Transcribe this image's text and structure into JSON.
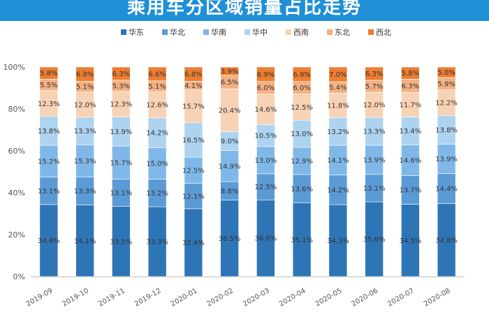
{
  "title": "乘用车分区域销量占比走势",
  "chart_data": {
    "type": "bar",
    "stacked": true,
    "title": "乘用车分区域销量占比走势",
    "xlabel": "",
    "ylabel": "",
    "ylim": [
      0,
      100
    ],
    "y_ticks": [
      "0%",
      "20%",
      "40%",
      "60%",
      "80%",
      "100%"
    ],
    "grid": false,
    "legend_position": "top",
    "categories": [
      "2019-09",
      "2019-10",
      "2019-11",
      "2019-12",
      "2020-01",
      "2020-02",
      "2020-03",
      "2020-04",
      "2020-05",
      "2020-06",
      "2020-07",
      "2020-08"
    ],
    "series": [
      {
        "name": "华东",
        "color": "#2e75b6",
        "values": [
          34.4,
          34.1,
          33.5,
          33.3,
          32.4,
          36.5,
          36.6,
          35.1,
          34.3,
          35.6,
          34.5,
          34.8
        ],
        "labels": [
          "34.4%",
          "34.1%",
          "33.5%",
          "33.3%",
          "32.4%",
          "36.5%",
          "36.6%",
          "35.1%",
          "34.3%",
          "35.6%",
          "34.5%",
          "34.8%"
        ]
      },
      {
        "name": "华北",
        "color": "#5b9bd5",
        "values": [
          13.1,
          13.3,
          13.1,
          13.2,
          12.1,
          8.8,
          12.5,
          13.6,
          14.2,
          13.1,
          13.7,
          14.4
        ],
        "labels": [
          "13.1%",
          "13.3%",
          "13.1%",
          "13.2%",
          "12.1%",
          "8.8%",
          "12.5%",
          "13.6%",
          "14.2%",
          "13.1%",
          "13.7%",
          "14.4%"
        ]
      },
      {
        "name": "华南",
        "color": "#7fb8e8",
        "values": [
          15.2,
          15.3,
          15.7,
          15.0,
          12.5,
          14.9,
          13.0,
          12.9,
          14.1,
          13.9,
          14.6,
          13.9
        ],
        "labels": [
          "15.2%",
          "15.3%",
          "15.7%",
          "15.0%",
          "12.5%",
          "14.9%",
          "13.0%",
          "12.9%",
          "14.1%",
          "13.9%",
          "14.6%",
          "13.9%"
        ]
      },
      {
        "name": "华中",
        "color": "#add3f1",
        "values": [
          13.8,
          13.3,
          13.9,
          14.2,
          16.5,
          9.0,
          10.5,
          13.0,
          13.2,
          13.3,
          13.4,
          13.8
        ],
        "labels": [
          "13.8%",
          "13.3%",
          "13.9%",
          "14.2%",
          "16.5%",
          "9.0%",
          "10.5%",
          "13.0%",
          "13.2%",
          "13.3%",
          "13.4%",
          "13.8%"
        ]
      },
      {
        "name": "西南",
        "color": "#f8d2b4",
        "values": [
          12.3,
          12.0,
          12.3,
          12.6,
          15.7,
          20.4,
          14.6,
          12.5,
          11.8,
          12.0,
          11.7,
          12.2
        ],
        "labels": [
          "12.3%",
          "12.0%",
          "12.3%",
          "12.6%",
          "15.7%",
          "20.4%",
          "14.6%",
          "12.5%",
          "11.8%",
          "12.0%",
          "11.7%",
          "12.2%"
        ]
      },
      {
        "name": "东北",
        "color": "#f4b183",
        "values": [
          5.5,
          5.1,
          5.3,
          5.1,
          4.1,
          6.5,
          6.0,
          6.0,
          5.4,
          5.7,
          6.3,
          5.9
        ],
        "labels": [
          "5.5%",
          "5.1%",
          "5.3%",
          "5.1%",
          "4.1%",
          "6.5%",
          "6.0%",
          "6.0%",
          "5.4%",
          "5.7%",
          "6.3%",
          "5.9%"
        ]
      },
      {
        "name": "西北",
        "color": "#ed7d31",
        "values": [
          5.8,
          6.8,
          6.3,
          6.6,
          6.8,
          3.9,
          6.9,
          6.9,
          7.0,
          6.3,
          5.8,
          5.0
        ],
        "labels": [
          "5.8%",
          "6.8%",
          "6.3%",
          "6.6%",
          "6.8%",
          "3.9%",
          "6.9%",
          "6.9%",
          "7.0%",
          "6.3%",
          "5.8%",
          "5.0%"
        ]
      }
    ]
  }
}
